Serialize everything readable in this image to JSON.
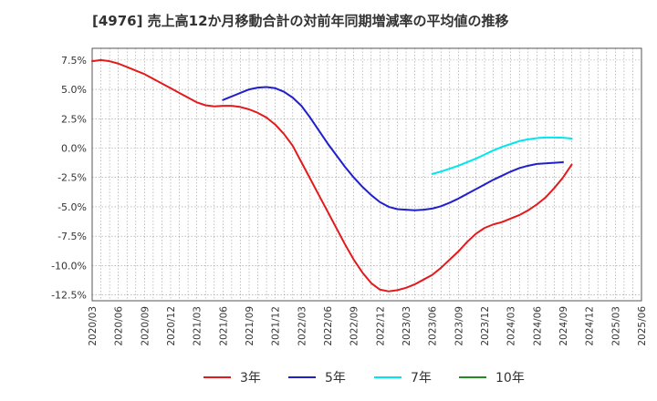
{
  "chart_data": {
    "type": "line",
    "title": "[4976]  売上高12か月移動合計の対前年同期増減率の平均値の推移",
    "xlabel": "",
    "ylabel": "",
    "ylim": [
      -13.0,
      8.5
    ],
    "y_ticks": [
      7.5,
      5.0,
      2.5,
      0.0,
      -2.5,
      -5.0,
      -7.5,
      -10.0,
      -12.5
    ],
    "y_tick_labels": [
      "7.5%",
      "5.0%",
      "2.5%",
      "0.0%",
      "-2.5%",
      "-5.0%",
      "-7.5%",
      "-10.0%",
      "-12.5%"
    ],
    "x_tick_labels": [
      "2020/03",
      "2020/06",
      "2020/09",
      "2020/12",
      "2021/03",
      "2021/06",
      "2021/09",
      "2021/12",
      "2022/03",
      "2022/06",
      "2022/09",
      "2022/12",
      "2023/03",
      "2023/06",
      "2023/09",
      "2023/12",
      "2024/03",
      "2024/06",
      "2024/09",
      "2024/12",
      "2025/03",
      "2025/06"
    ],
    "grid": true,
    "legend_position": "bottom",
    "series": [
      {
        "name": "3年",
        "color": "#e31a1c",
        "points": [
          [
            "2020/03",
            7.4
          ],
          [
            "2020/04",
            7.5
          ],
          [
            "2020/05",
            7.4
          ],
          [
            "2020/06",
            7.2
          ],
          [
            "2020/07",
            6.9
          ],
          [
            "2020/08",
            6.6
          ],
          [
            "2020/09",
            6.3
          ],
          [
            "2020/10",
            5.9
          ],
          [
            "2020/11",
            5.5
          ],
          [
            "2020/12",
            5.1
          ],
          [
            "2021/01",
            4.7
          ],
          [
            "2021/02",
            4.3
          ],
          [
            "2021/03",
            3.9
          ],
          [
            "2021/04",
            3.65
          ],
          [
            "2021/05",
            3.55
          ],
          [
            "2021/06",
            3.6
          ],
          [
            "2021/07",
            3.6
          ],
          [
            "2021/08",
            3.5
          ],
          [
            "2021/09",
            3.3
          ],
          [
            "2021/10",
            3.0
          ],
          [
            "2021/11",
            2.6
          ],
          [
            "2021/12",
            2.0
          ],
          [
            "2022/01",
            1.2
          ],
          [
            "2022/02",
            0.2
          ],
          [
            "2022/03",
            -1.2
          ],
          [
            "2022/04",
            -2.6
          ],
          [
            "2022/05",
            -4.0
          ],
          [
            "2022/06",
            -5.4
          ],
          [
            "2022/07",
            -6.8
          ],
          [
            "2022/08",
            -8.2
          ],
          [
            "2022/09",
            -9.5
          ],
          [
            "2022/10",
            -10.6
          ],
          [
            "2022/11",
            -11.5
          ],
          [
            "2022/12",
            -12.05
          ],
          [
            "2023/01",
            -12.2
          ],
          [
            "2023/02",
            -12.1
          ],
          [
            "2023/03",
            -11.9
          ],
          [
            "2023/04",
            -11.6
          ],
          [
            "2023/05",
            -11.2
          ],
          [
            "2023/06",
            -10.8
          ],
          [
            "2023/07",
            -10.2
          ],
          [
            "2023/08",
            -9.5
          ],
          [
            "2023/09",
            -8.8
          ],
          [
            "2023/10",
            -8.0
          ],
          [
            "2023/11",
            -7.3
          ],
          [
            "2023/12",
            -6.8
          ],
          [
            "2024/01",
            -6.5
          ],
          [
            "2024/02",
            -6.3
          ],
          [
            "2024/03",
            -6.0
          ],
          [
            "2024/04",
            -5.7
          ],
          [
            "2024/05",
            -5.3
          ],
          [
            "2024/06",
            -4.8
          ],
          [
            "2024/07",
            -4.2
          ],
          [
            "2024/08",
            -3.4
          ],
          [
            "2024/09",
            -2.5
          ],
          [
            "2024/10",
            -1.4
          ]
        ]
      },
      {
        "name": "5年",
        "color": "#1f1fcc",
        "points": [
          [
            "2021/06",
            4.1
          ],
          [
            "2021/07",
            4.4
          ],
          [
            "2021/08",
            4.7
          ],
          [
            "2021/09",
            5.0
          ],
          [
            "2021/10",
            5.15
          ],
          [
            "2021/11",
            5.2
          ],
          [
            "2021/12",
            5.1
          ],
          [
            "2022/01",
            4.8
          ],
          [
            "2022/02",
            4.3
          ],
          [
            "2022/03",
            3.6
          ],
          [
            "2022/04",
            2.6
          ],
          [
            "2022/05",
            1.5
          ],
          [
            "2022/06",
            0.4
          ],
          [
            "2022/07",
            -0.6
          ],
          [
            "2022/08",
            -1.6
          ],
          [
            "2022/09",
            -2.5
          ],
          [
            "2022/10",
            -3.3
          ],
          [
            "2022/11",
            -4.0
          ],
          [
            "2022/12",
            -4.6
          ],
          [
            "2023/01",
            -5.0
          ],
          [
            "2023/02",
            -5.2
          ],
          [
            "2023/03",
            -5.25
          ],
          [
            "2023/04",
            -5.3
          ],
          [
            "2023/05",
            -5.25
          ],
          [
            "2023/06",
            -5.15
          ],
          [
            "2023/07",
            -4.95
          ],
          [
            "2023/08",
            -4.65
          ],
          [
            "2023/09",
            -4.3
          ],
          [
            "2023/10",
            -3.9
          ],
          [
            "2023/11",
            -3.5
          ],
          [
            "2023/12",
            -3.1
          ],
          [
            "2024/01",
            -2.7
          ],
          [
            "2024/02",
            -2.35
          ],
          [
            "2024/03",
            -2.0
          ],
          [
            "2024/04",
            -1.7
          ],
          [
            "2024/05",
            -1.5
          ],
          [
            "2024/06",
            -1.35
          ],
          [
            "2024/07",
            -1.3
          ],
          [
            "2024/08",
            -1.25
          ],
          [
            "2024/09",
            -1.2
          ]
        ]
      },
      {
        "name": "7年",
        "color": "#00e5ee",
        "points": [
          [
            "2023/06",
            -2.2
          ],
          [
            "2023/07",
            -2.0
          ],
          [
            "2023/08",
            -1.75
          ],
          [
            "2023/09",
            -1.5
          ],
          [
            "2023/10",
            -1.2
          ],
          [
            "2023/11",
            -0.9
          ],
          [
            "2023/12",
            -0.55
          ],
          [
            "2024/01",
            -0.2
          ],
          [
            "2024/02",
            0.1
          ],
          [
            "2024/03",
            0.35
          ],
          [
            "2024/04",
            0.6
          ],
          [
            "2024/05",
            0.75
          ],
          [
            "2024/06",
            0.85
          ],
          [
            "2024/07",
            0.9
          ],
          [
            "2024/08",
            0.9
          ],
          [
            "2024/09",
            0.88
          ],
          [
            "2024/10",
            0.82
          ]
        ]
      },
      {
        "name": "10年",
        "color": "#228b22",
        "points": []
      }
    ]
  }
}
